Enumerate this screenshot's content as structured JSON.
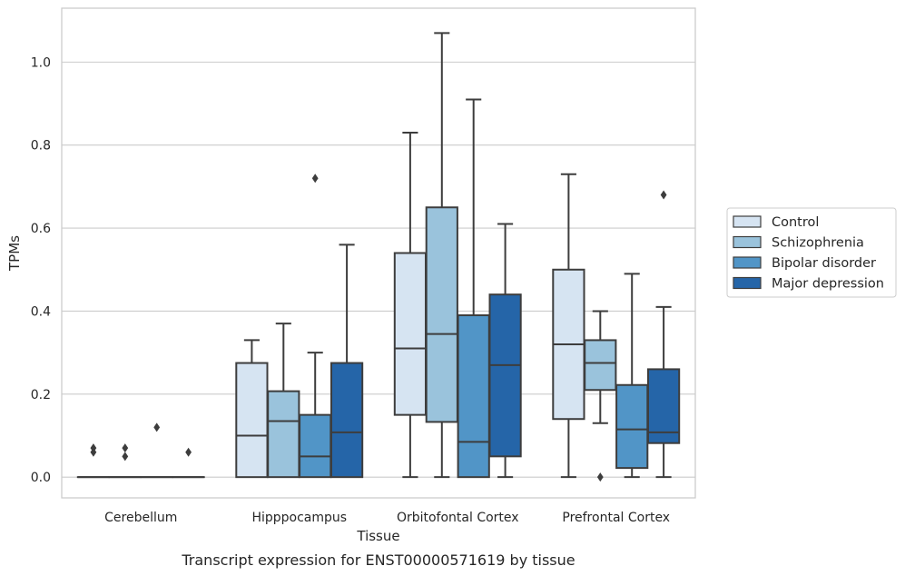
{
  "caption": "Transcript expression for ENST00000571619 by tissue",
  "chart_data": {
    "type": "box",
    "xlabel": "Tissue",
    "ylabel": "TPMs",
    "ylim": [
      -0.05,
      1.13
    ],
    "yticks": [
      "0.0",
      "0.2",
      "0.4",
      "0.6",
      "0.8",
      "1.0"
    ],
    "grid": "horizontal",
    "legend_position": "right",
    "categories": [
      "Cerebellum",
      "Hipppocampus",
      "Orbitofontal Cortex",
      "Prefrontal Cortex"
    ],
    "series": [
      {
        "name": "Control",
        "color": "#d6e4f2",
        "boxes": [
          {
            "q1": 0,
            "median": 0,
            "q3": 0,
            "whisker_low": 0,
            "whisker_high": 0,
            "outliers": [
              0.06,
              0.07
            ]
          },
          {
            "q1": 0,
            "median": 0.1,
            "q3": 0.275,
            "whisker_low": 0,
            "whisker_high": 0.33,
            "outliers": []
          },
          {
            "q1": 0.15,
            "median": 0.31,
            "q3": 0.54,
            "whisker_low": 0,
            "whisker_high": 0.83,
            "outliers": []
          },
          {
            "q1": 0.14,
            "median": 0.32,
            "q3": 0.5,
            "whisker_low": 0,
            "whisker_high": 0.73,
            "outliers": []
          }
        ]
      },
      {
        "name": "Schizophrenia",
        "color": "#9ac3dc",
        "boxes": [
          {
            "q1": 0,
            "median": 0,
            "q3": 0,
            "whisker_low": 0,
            "whisker_high": 0,
            "outliers": [
              0.05,
              0.07
            ]
          },
          {
            "q1": 0,
            "median": 0.135,
            "q3": 0.207,
            "whisker_low": 0,
            "whisker_high": 0.37,
            "outliers": []
          },
          {
            "q1": 0.133,
            "median": 0.345,
            "q3": 0.65,
            "whisker_low": 0,
            "whisker_high": 1.07,
            "outliers": []
          },
          {
            "q1": 0.21,
            "median": 0.275,
            "q3": 0.33,
            "whisker_low": 0.13,
            "whisker_high": 0.4,
            "outliers": [
              0
            ]
          }
        ]
      },
      {
        "name": "Bipolar disorder",
        "color": "#5195c7",
        "boxes": [
          {
            "q1": 0,
            "median": 0,
            "q3": 0,
            "whisker_low": 0,
            "whisker_high": 0,
            "outliers": [
              0.12
            ]
          },
          {
            "q1": 0,
            "median": 0.05,
            "q3": 0.15,
            "whisker_low": 0,
            "whisker_high": 0.3,
            "outliers": [
              0.72
            ]
          },
          {
            "q1": 0,
            "median": 0.085,
            "q3": 0.39,
            "whisker_low": 0,
            "whisker_high": 0.91,
            "outliers": []
          },
          {
            "q1": 0.022,
            "median": 0.115,
            "q3": 0.222,
            "whisker_low": 0,
            "whisker_high": 0.49,
            "outliers": []
          }
        ]
      },
      {
        "name": "Major depression",
        "color": "#2565a8",
        "boxes": [
          {
            "q1": 0,
            "median": 0,
            "q3": 0,
            "whisker_low": 0,
            "whisker_high": 0,
            "outliers": [
              0.06
            ]
          },
          {
            "q1": 0,
            "median": 0.108,
            "q3": 0.275,
            "whisker_low": 0,
            "whisker_high": 0.56,
            "outliers": []
          },
          {
            "q1": 0.05,
            "median": 0.27,
            "q3": 0.44,
            "whisker_low": 0,
            "whisker_high": 0.61,
            "outliers": []
          },
          {
            "q1": 0.082,
            "median": 0.108,
            "q3": 0.26,
            "whisker_low": 0,
            "whisker_high": 0.41,
            "outliers": [
              0.68
            ]
          }
        ]
      }
    ]
  }
}
